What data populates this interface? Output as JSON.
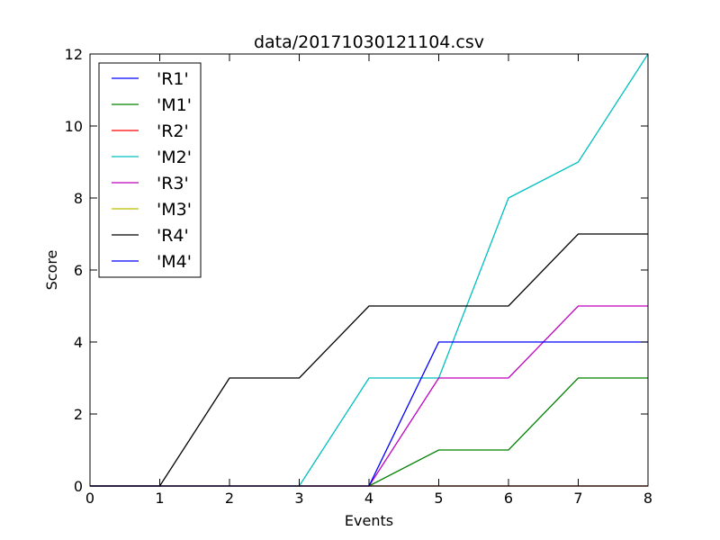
{
  "chart_data": {
    "type": "line",
    "title": "data/20171030121104.csv",
    "xlabel": "Events",
    "ylabel": "Score",
    "xlim": [
      0,
      8
    ],
    "ylim": [
      0,
      12
    ],
    "xticks": [
      "0",
      "1",
      "2",
      "3",
      "4",
      "5",
      "6",
      "7",
      "8"
    ],
    "yticks": [
      "0",
      "2",
      "4",
      "6",
      "8",
      "10",
      "12"
    ],
    "grid": false,
    "legend_position": "top-left",
    "x": [
      0,
      1,
      2,
      3,
      4,
      5,
      6,
      7,
      8
    ],
    "series": [
      {
        "name": "'R1'",
        "color": "#0000ff",
        "values": [
          0,
          0,
          0,
          0,
          0,
          0,
          0,
          0,
          0
        ]
      },
      {
        "name": "'M1'",
        "color": "#008000",
        "values": [
          0,
          0,
          0,
          0,
          0,
          1,
          1,
          3,
          3
        ]
      },
      {
        "name": "'R2'",
        "color": "#ff0000",
        "values": [
          0,
          0,
          0,
          0,
          0,
          0,
          0,
          0,
          0
        ]
      },
      {
        "name": "'M2'",
        "color": "#00bfbf",
        "values": [
          0,
          0,
          0,
          0,
          3,
          3,
          8,
          9,
          12
        ]
      },
      {
        "name": "'R3'",
        "color": "#bf00bf",
        "values": [
          0,
          0,
          0,
          0,
          0,
          3,
          3,
          5,
          5
        ]
      },
      {
        "name": "'M3'",
        "color": "#bfbf00",
        "values": [
          0,
          0,
          0,
          0,
          0,
          0,
          0,
          0,
          0
        ]
      },
      {
        "name": "'R4'",
        "color": "#000000",
        "values": [
          0,
          0,
          3,
          3,
          5,
          5,
          5,
          7,
          7
        ]
      },
      {
        "name": "'M4'",
        "color": "#0000ff",
        "values": [
          0,
          0,
          0,
          0,
          0,
          4,
          4,
          4,
          4
        ]
      }
    ]
  }
}
